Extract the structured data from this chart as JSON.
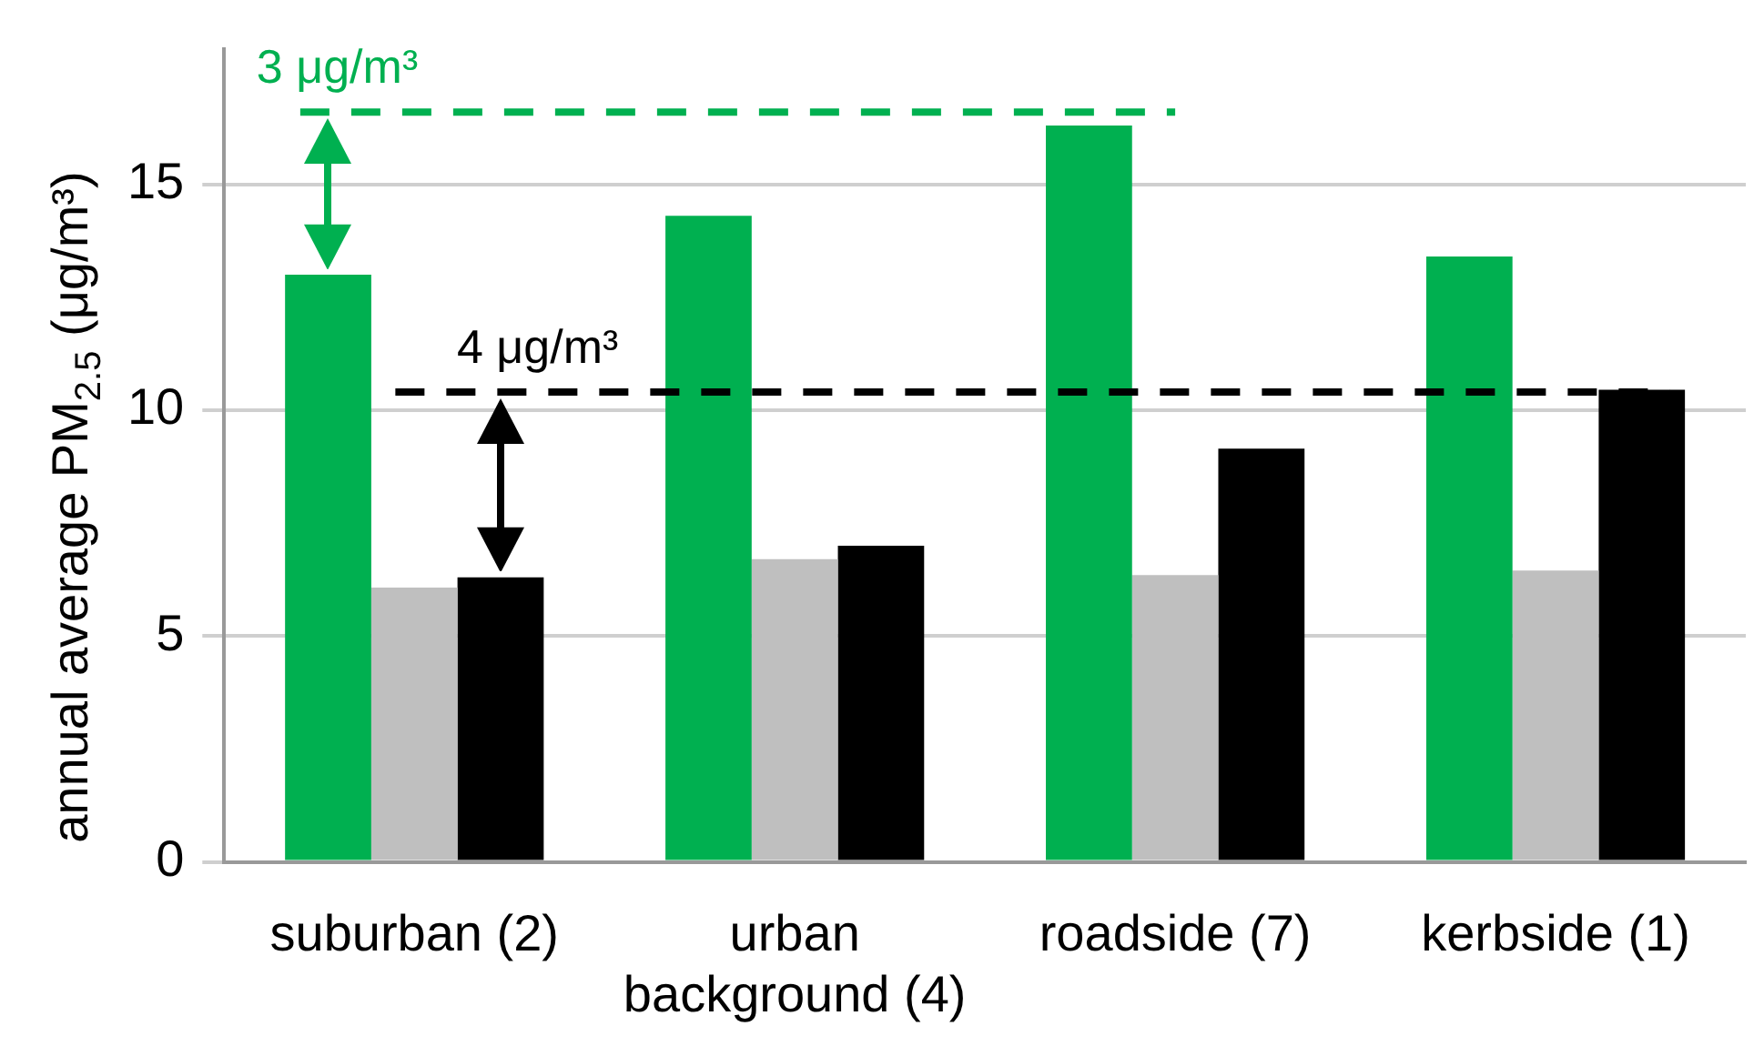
{
  "chart_data": {
    "type": "bar",
    "ylabel": "annual average PM$_{2.5}$ (μg/m³)",
    "categories": [
      "suburban (2)",
      "urban background (4)",
      "roadside (7)",
      "kerbside (1)"
    ],
    "series": [
      {
        "color": "#00b050",
        "values": [
          13.0,
          14.3,
          16.3,
          13.4
        ]
      },
      {
        "color": "#bfbfbf",
        "values": [
          6.07,
          6.7,
          6.35,
          6.45
        ]
      },
      {
        "color": "#000000",
        "values": [
          6.3,
          7.0,
          9.15,
          10.45
        ]
      }
    ],
    "ylim": [
      0,
      18
    ],
    "yticks": [
      0,
      5,
      10,
      15
    ],
    "grid": "y",
    "legend": false,
    "ref_lines": [
      {
        "axis": "y",
        "value": 16.6,
        "label": "3 μg/m³",
        "color": "#00b050",
        "line_style": "dashed"
      },
      {
        "axis": "y",
        "value": 10.4,
        "label": "4 μg/m³",
        "color": "#000000",
        "line_style": "dashed"
      }
    ]
  }
}
